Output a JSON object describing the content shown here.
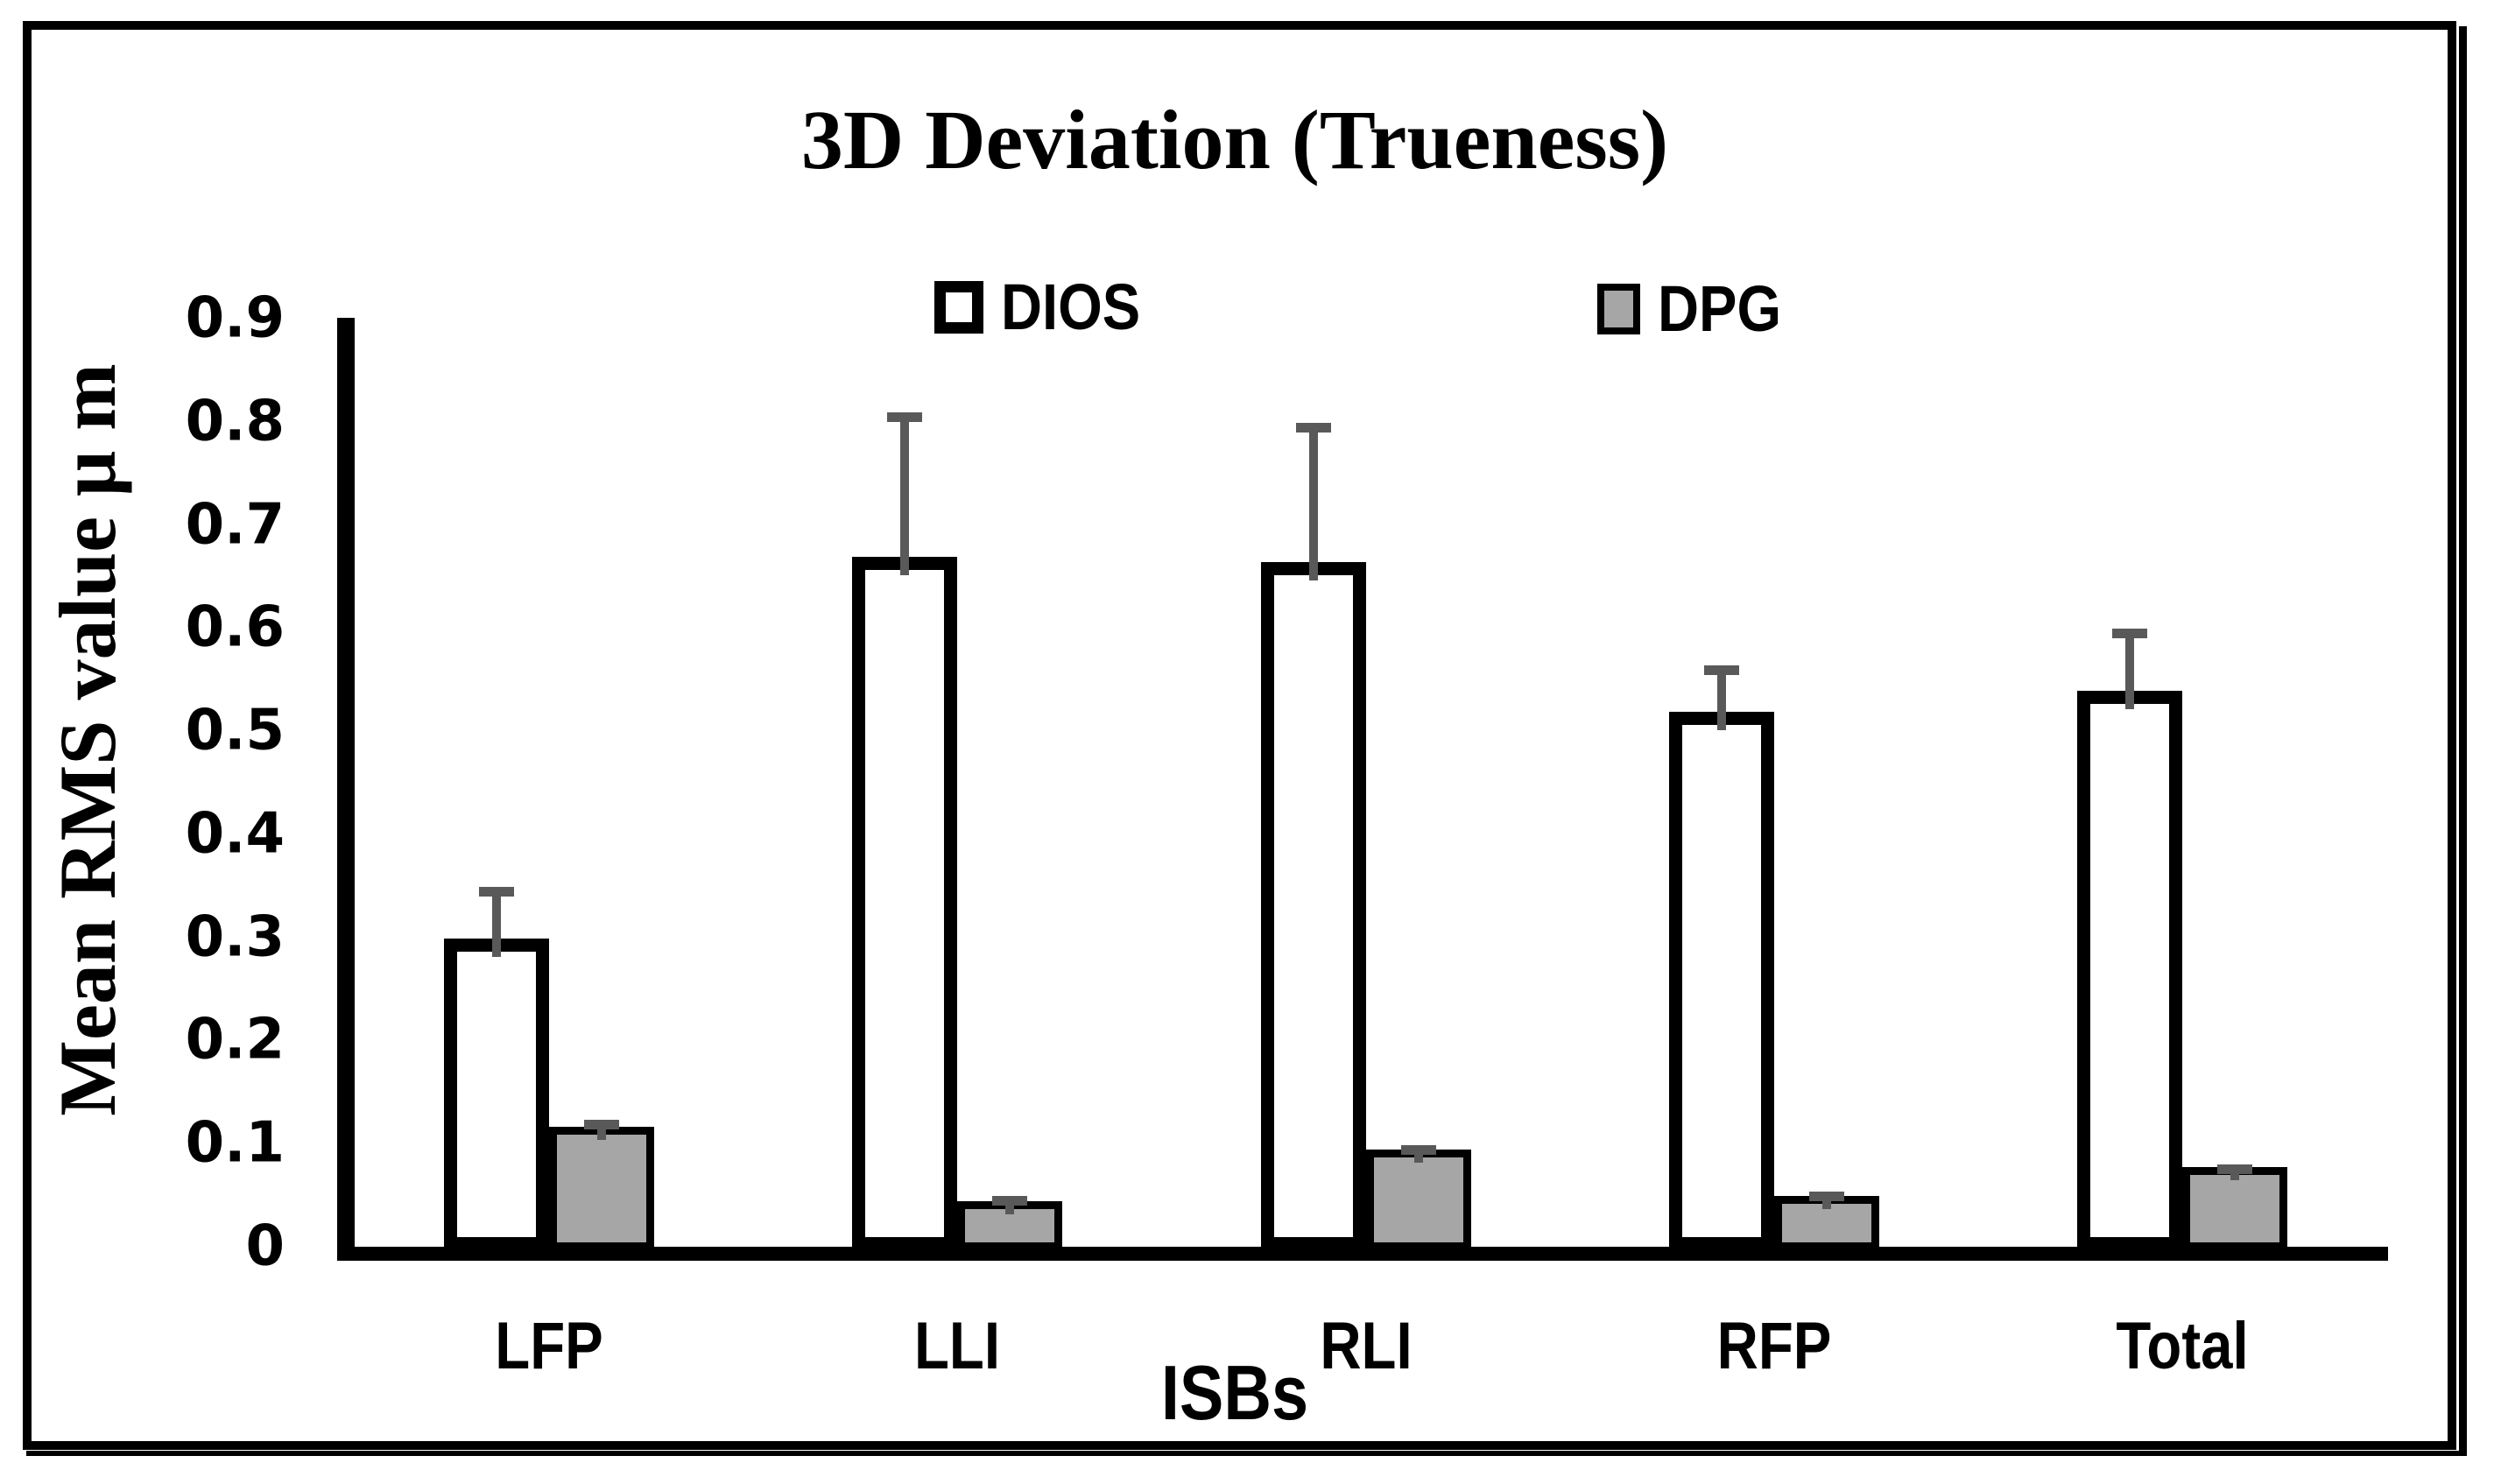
{
  "figure": {
    "title": "3D Deviation (Trueness)"
  },
  "axes": {
    "y_title": "Mean RMS value μ m",
    "x_title": "ISBs",
    "y_ticks": [
      "0.9",
      "0.8",
      "0.7",
      "0.6",
      "0.5",
      "0.4",
      "0.3",
      "0.2",
      "0.1",
      "0"
    ]
  },
  "legend": {
    "items": [
      {
        "label": "DIOS",
        "fill": "#ffffff",
        "border": "#000000"
      },
      {
        "label": "DPG",
        "fill": "#a6a6a6",
        "border": "#000000"
      }
    ]
  },
  "colors": {
    "dios_fill": "#ffffff",
    "dpg_fill": "#a6a6a6",
    "bar_border": "#000000",
    "error_bar": "#595959",
    "axis": "#000000"
  },
  "chart_data": {
    "type": "bar",
    "title": "3D Deviation (Trueness)",
    "xlabel": "ISBs",
    "ylabel": "Mean RMS value μ m",
    "ylim": [
      0,
      0.9
    ],
    "grid": false,
    "legend_position": "top",
    "categories": [
      "LFP",
      "LLI",
      "RLI",
      "RFP",
      "Total"
    ],
    "series": [
      {
        "name": "DIOS",
        "values": [
          0.3,
          0.67,
          0.665,
          0.52,
          0.54
        ],
        "error_plus": [
          0.05,
          0.14,
          0.135,
          0.045,
          0.06
        ],
        "fill": "#ffffff",
        "border": "#000000"
      },
      {
        "name": "DPG",
        "values": [
          0.117,
          0.045,
          0.095,
          0.05,
          0.078
        ],
        "error_plus": [
          0.007,
          0.005,
          0.004,
          0.004,
          0.003
        ],
        "fill": "#a6a6a6",
        "border": "#000000"
      }
    ]
  }
}
